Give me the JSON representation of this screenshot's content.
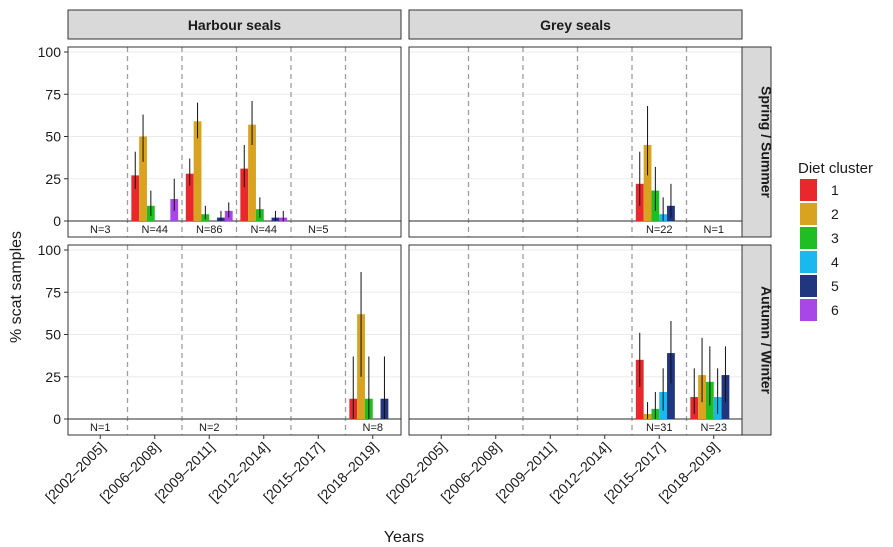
{
  "chart_data": {
    "type": "bar",
    "ylabel": "% scat samples",
    "xlabel": "Years",
    "ylim": [
      0,
      100
    ],
    "yticks": [
      0,
      25,
      50,
      75,
      100
    ],
    "categories": [
      "[2002–2005]",
      "[2006–2008]",
      "[2009–2011]",
      "[2012–2014]",
      "[2015–2017]",
      "[2018–2019]"
    ],
    "column_facets": [
      "Harbour seals",
      "Grey seals"
    ],
    "row_facets": [
      "Spring / Summer",
      "Autumn / Winter"
    ],
    "legend": {
      "title": "Diet cluster",
      "position": "right",
      "items": [
        {
          "label": "1",
          "color": "#e8282d"
        },
        {
          "label": "2",
          "color": "#d9a21f"
        },
        {
          "label": "3",
          "color": "#1fbf23"
        },
        {
          "label": "4",
          "color": "#19b8ee"
        },
        {
          "label": "5",
          "color": "#22357f"
        },
        {
          "label": "6",
          "color": "#a946e8"
        }
      ]
    },
    "grid": "horizontal",
    "panels": [
      {
        "species": "Harbour seals",
        "season": "Spring / Summer",
        "counts": [
          "N=3",
          "N=44",
          "N=86",
          "N=44",
          "N=5",
          ""
        ],
        "series": [
          {
            "name": "1",
            "values": [
              0,
              27,
              28,
              31,
              0,
              0
            ],
            "err_low": [
              0,
              19,
              21,
              20,
              0,
              0
            ],
            "err_high": [
              0,
              41,
              37,
              45,
              0,
              0
            ]
          },
          {
            "name": "2",
            "values": [
              0,
              50,
              59,
              57,
              0,
              0
            ],
            "err_low": [
              0,
              35,
              49,
              45,
              0,
              0
            ],
            "err_high": [
              0,
              63,
              70,
              71,
              0,
              0
            ]
          },
          {
            "name": "3",
            "values": [
              0,
              9,
              4,
              7,
              0,
              0
            ],
            "err_low": [
              0,
              3,
              1,
              2,
              0,
              0
            ],
            "err_high": [
              0,
              18,
              9,
              14,
              0,
              0
            ]
          },
          {
            "name": "4",
            "values": [
              0,
              0,
              0,
              0,
              0,
              0
            ],
            "err_low": [
              0,
              0,
              0,
              0,
              0,
              0
            ],
            "err_high": [
              0,
              0,
              0,
              0,
              0,
              0
            ]
          },
          {
            "name": "5",
            "values": [
              0,
              0,
              2,
              2,
              0,
              0
            ],
            "err_low": [
              0,
              0,
              0,
              0,
              0,
              0
            ],
            "err_high": [
              0,
              0,
              6,
              6,
              0,
              0
            ]
          },
          {
            "name": "6",
            "values": [
              0,
              13,
              6,
              2,
              0,
              0
            ],
            "err_low": [
              0,
              6,
              2,
              0,
              0,
              0
            ],
            "err_high": [
              0,
              25,
              11,
              6,
              0,
              0
            ]
          }
        ]
      },
      {
        "species": "Grey seals",
        "season": "Spring / Summer",
        "counts": [
          "",
          "",
          "",
          "",
          "N=22",
          "N=1"
        ],
        "series": [
          {
            "name": "1",
            "values": [
              0,
              0,
              0,
              0,
              22,
              0
            ],
            "err_low": [
              0,
              0,
              0,
              0,
              9,
              0
            ],
            "err_high": [
              0,
              0,
              0,
              0,
              41,
              0
            ]
          },
          {
            "name": "2",
            "values": [
              0,
              0,
              0,
              0,
              45,
              0
            ],
            "err_low": [
              0,
              0,
              0,
              0,
              27,
              0
            ],
            "err_high": [
              0,
              0,
              0,
              0,
              68,
              0
            ]
          },
          {
            "name": "3",
            "values": [
              0,
              0,
              0,
              0,
              18,
              0
            ],
            "err_low": [
              0,
              0,
              0,
              0,
              6,
              0
            ],
            "err_high": [
              0,
              0,
              0,
              0,
              32,
              0
            ]
          },
          {
            "name": "4",
            "values": [
              0,
              0,
              0,
              0,
              4,
              0
            ],
            "err_low": [
              0,
              0,
              0,
              0,
              0,
              0
            ],
            "err_high": [
              0,
              0,
              0,
              0,
              14,
              0
            ]
          },
          {
            "name": "5",
            "values": [
              0,
              0,
              0,
              0,
              9,
              0
            ],
            "err_low": [
              0,
              0,
              0,
              0,
              2,
              0
            ],
            "err_high": [
              0,
              0,
              0,
              0,
              22,
              0
            ]
          },
          {
            "name": "6",
            "values": [
              0,
              0,
              0,
              0,
              0,
              0
            ],
            "err_low": [
              0,
              0,
              0,
              0,
              0,
              0
            ],
            "err_high": [
              0,
              0,
              0,
              0,
              0,
              0
            ]
          }
        ]
      },
      {
        "species": "Harbour seals",
        "season": "Autumn / Winter",
        "counts": [
          "N=1",
          "",
          "N=2",
          "",
          "",
          "N=8"
        ],
        "series": [
          {
            "name": "1",
            "values": [
              0,
              0,
              0,
              0,
              0,
              12
            ],
            "err_low": [
              0,
              0,
              0,
              0,
              0,
              0
            ],
            "err_high": [
              0,
              0,
              0,
              0,
              0,
              37
            ]
          },
          {
            "name": "2",
            "values": [
              0,
              0,
              0,
              0,
              0,
              62
            ],
            "err_low": [
              0,
              0,
              0,
              0,
              0,
              25
            ],
            "err_high": [
              0,
              0,
              0,
              0,
              0,
              87
            ]
          },
          {
            "name": "3",
            "values": [
              0,
              0,
              0,
              0,
              0,
              12
            ],
            "err_low": [
              0,
              0,
              0,
              0,
              0,
              0
            ],
            "err_high": [
              0,
              0,
              0,
              0,
              0,
              37
            ]
          },
          {
            "name": "4",
            "values": [
              0,
              0,
              0,
              0,
              0,
              0
            ],
            "err_low": [
              0,
              0,
              0,
              0,
              0,
              0
            ],
            "err_high": [
              0,
              0,
              0,
              0,
              0,
              0
            ]
          },
          {
            "name": "5",
            "values": [
              0,
              0,
              0,
              0,
              0,
              12
            ],
            "err_low": [
              0,
              0,
              0,
              0,
              0,
              0
            ],
            "err_high": [
              0,
              0,
              0,
              0,
              0,
              37
            ]
          },
          {
            "name": "6",
            "values": [
              0,
              0,
              0,
              0,
              0,
              0
            ],
            "err_low": [
              0,
              0,
              0,
              0,
              0,
              0
            ],
            "err_high": [
              0,
              0,
              0,
              0,
              0,
              0
            ]
          }
        ]
      },
      {
        "species": "Grey seals",
        "season": "Autumn / Winter",
        "counts": [
          "",
          "",
          "",
          "",
          "N=31",
          "N=23"
        ],
        "series": [
          {
            "name": "1",
            "values": [
              0,
              0,
              0,
              0,
              35,
              13
            ],
            "err_low": [
              0,
              0,
              0,
              0,
              19,
              3
            ],
            "err_high": [
              0,
              0,
              0,
              0,
              51,
              30
            ]
          },
          {
            "name": "2",
            "values": [
              0,
              0,
              0,
              0,
              3,
              26
            ],
            "err_low": [
              0,
              0,
              0,
              0,
              0,
              10
            ],
            "err_high": [
              0,
              0,
              0,
              0,
              10,
              48
            ]
          },
          {
            "name": "3",
            "values": [
              0,
              0,
              0,
              0,
              6,
              22
            ],
            "err_low": [
              0,
              0,
              0,
              0,
              0,
              8
            ],
            "err_high": [
              0,
              0,
              0,
              0,
              16,
              43
            ]
          },
          {
            "name": "4",
            "values": [
              0,
              0,
              0,
              0,
              16,
              13
            ],
            "err_low": [
              0,
              0,
              0,
              0,
              5,
              3
            ],
            "err_high": [
              0,
              0,
              0,
              0,
              30,
              30
            ]
          },
          {
            "name": "5",
            "values": [
              0,
              0,
              0,
              0,
              39,
              26
            ],
            "err_low": [
              0,
              0,
              0,
              0,
              21,
              10
            ],
            "err_high": [
              0,
              0,
              0,
              0,
              58,
              43
            ]
          },
          {
            "name": "6",
            "values": [
              0,
              0,
              0,
              0,
              0,
              0
            ],
            "err_low": [
              0,
              0,
              0,
              0,
              0,
              0
            ],
            "err_high": [
              0,
              0,
              0,
              0,
              0,
              0
            ]
          }
        ]
      }
    ]
  }
}
